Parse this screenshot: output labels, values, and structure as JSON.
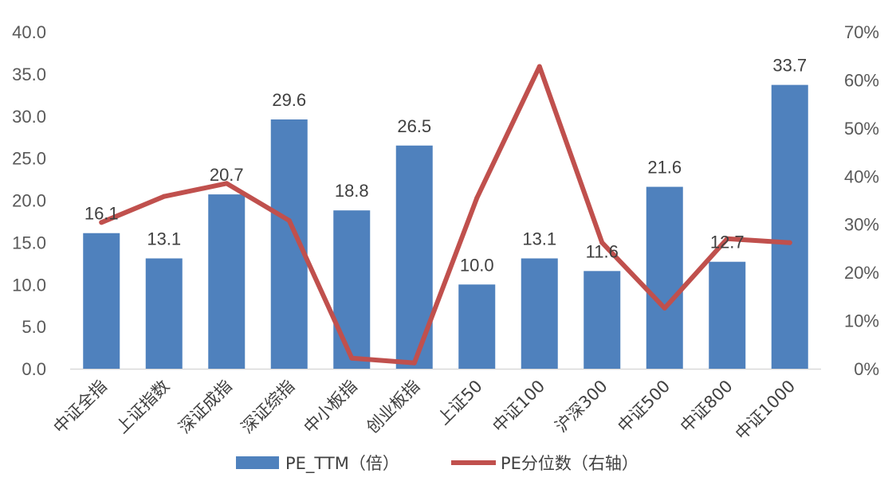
{
  "chart_data": {
    "type": "bar",
    "categories": [
      "中证全指",
      "上证指数",
      "深证成指",
      "深证综指",
      "中小板指",
      "创业板指",
      "上证50",
      "中证100",
      "沪深300",
      "中证500",
      "中证800",
      "中证1000"
    ],
    "series": [
      {
        "name": "PE_TTM（倍）",
        "type": "bar",
        "axis": "left",
        "color": "#4F81BD",
        "values": [
          16.1,
          13.1,
          20.7,
          29.6,
          18.8,
          26.5,
          10.0,
          13.1,
          11.6,
          21.6,
          12.7,
          33.7
        ],
        "labels": [
          "16.1",
          "13.1",
          "20.7",
          "29.6",
          "18.8",
          "26.5",
          "10.0",
          "13.1",
          "11.6",
          "21.6",
          "12.7",
          "33.7"
        ]
      },
      {
        "name": "PE分位数（右轴）",
        "type": "line",
        "axis": "right",
        "color": "#C0504D",
        "values": [
          0.304,
          0.358,
          0.385,
          0.308,
          0.022,
          0.012,
          0.355,
          0.628,
          0.262,
          0.126,
          0.27,
          0.262
        ]
      }
    ],
    "y_left": {
      "ylim": [
        0,
        40
      ],
      "ticks": [
        0,
        5,
        10,
        15,
        20,
        25,
        30,
        35,
        40
      ],
      "tick_labels": [
        "0.0",
        "5.0",
        "10.0",
        "15.0",
        "20.0",
        "25.0",
        "30.0",
        "35.0",
        "40.0"
      ]
    },
    "y_right": {
      "ylim": [
        0,
        0.7
      ],
      "ticks": [
        0,
        0.1,
        0.2,
        0.3,
        0.4,
        0.5,
        0.6,
        0.7
      ],
      "tick_labels": [
        "0%",
        "10%",
        "20%",
        "30%",
        "40%",
        "50%",
        "60%",
        "70%"
      ]
    },
    "grid": false,
    "legend": "bottom"
  }
}
